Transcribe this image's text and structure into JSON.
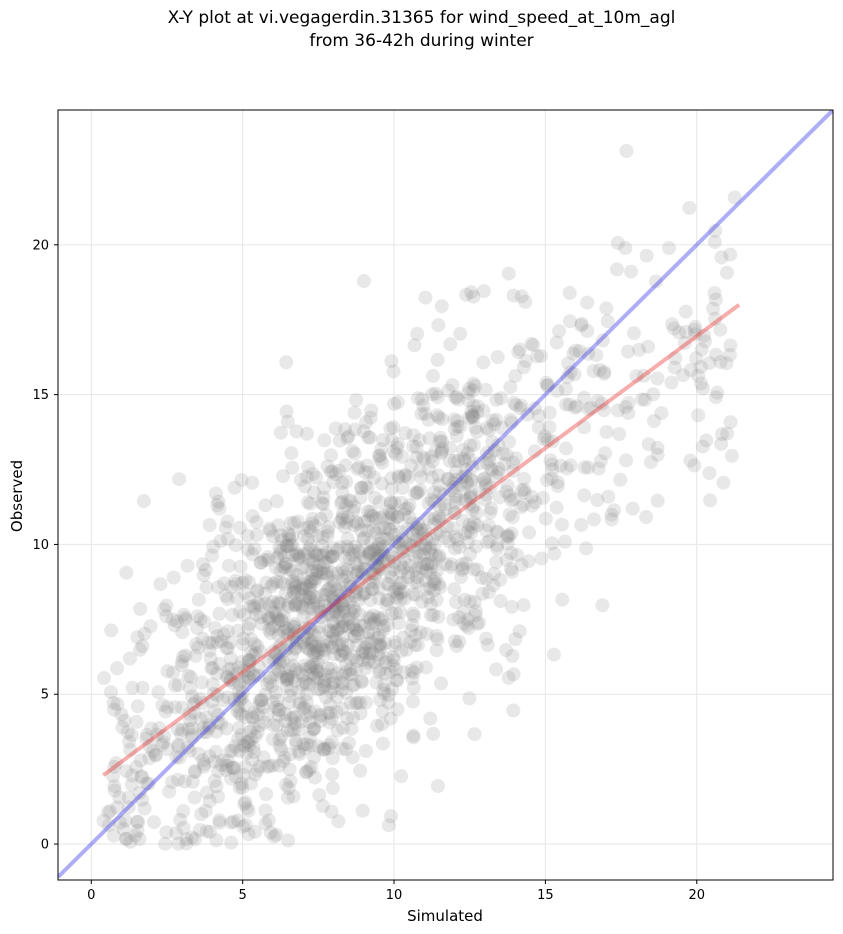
{
  "chart_data": {
    "type": "scatter",
    "title_line1": "X-Y plot at vi.vegagerdin.31365 for wind_speed_at_10m_agl",
    "title_line2": "from 36-42h during winter",
    "xlabel": "Simulated",
    "ylabel": "Observed",
    "xlim": [
      -1.1,
      24.5
    ],
    "ylim": [
      -1.2,
      24.5
    ],
    "xticks": [
      0,
      5,
      10,
      15,
      20
    ],
    "yticks": [
      0,
      5,
      10,
      15,
      20
    ],
    "grid": true,
    "point_color": "#808080",
    "point_opacity": 0.18,
    "n_points_approx": 1800,
    "cloud_model": {
      "sim_distribution": "skewed, centered near 8 m/s, range 0.4 to 21.4",
      "obs_vs_sim_slope": 0.75,
      "obs_vs_sim_intercept": 2.0,
      "spread_sd": 2.8
    },
    "identity_line": {
      "color": "#3333ee",
      "opacity": 0.4,
      "x": [
        -1.1,
        24.5
      ],
      "y": [
        -1.1,
        24.5
      ]
    },
    "fit_line": {
      "color": "#ee3333",
      "opacity": 0.4,
      "x": [
        0.4,
        21.4
      ],
      "y": [
        2.3,
        18.0
      ]
    }
  }
}
